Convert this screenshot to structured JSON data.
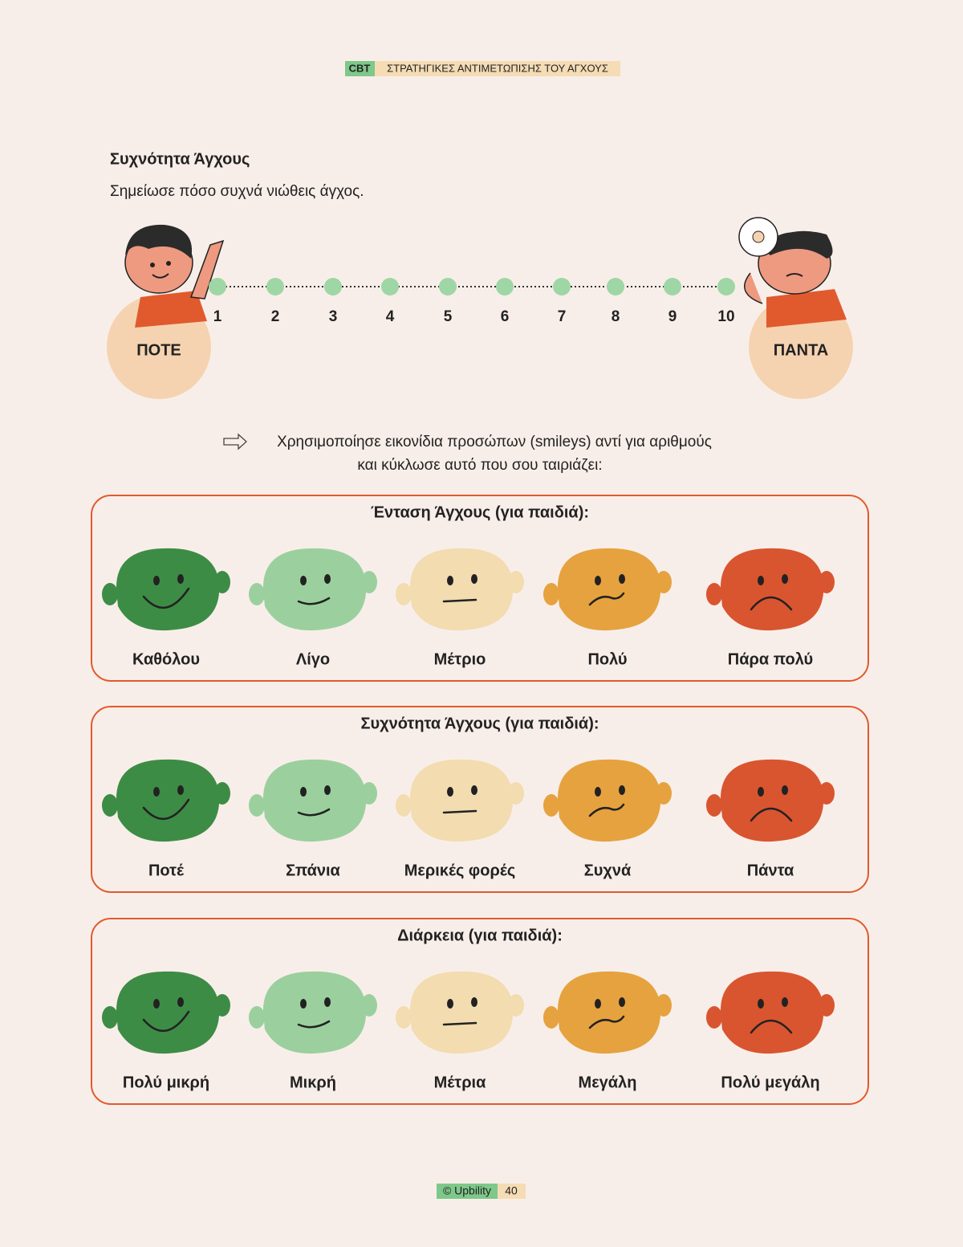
{
  "header": {
    "tag": "CBT",
    "title": "ΣΤΡΑΤΗΓΙΚΕΣ ΑΝΤΙΜΕΤΩΠΙΣΗΣ ΤΟΥ ΑΓΧΟΥΣ"
  },
  "section": {
    "title": "Συχνότητα Άγχους",
    "instruction": "Σημείωσε πόσο συχνά νιώθεις άγχος."
  },
  "scale": {
    "points": [
      1,
      2,
      3,
      4,
      5,
      6,
      7,
      8,
      9,
      10
    ],
    "left_label": "ΠΟΤΕ",
    "right_label": "ΠΑΝΤΑ"
  },
  "note": {
    "lines": [
      "Χρησιμοποίησε εικονίδια προσώπων (smileys) αντί για αριθμούς",
      "και κύκλωσε αυτό που σου ταιριάζει:"
    ]
  },
  "panels": [
    {
      "title": "Ένταση Άγχους (για παιδιά):",
      "labels": [
        "Καθόλου",
        "Λίγο",
        "Μέτριο",
        "Πολύ",
        "Πάρα πολύ"
      ]
    },
    {
      "title": "Συχνότητα Άγχους (για παιδιά):",
      "labels": [
        "Ποτέ",
        "Σπάνια",
        "Μερικές φορές",
        "Συχνά",
        "Πάντα"
      ]
    },
    {
      "title": "Διάρκεια (για παιδιά):",
      "labels": [
        "Πολύ μικρή",
        "Μικρή",
        "Μέτρια",
        "Μεγάλη",
        "Πολύ μεγάλη"
      ]
    }
  ],
  "footer": {
    "copyright": "© Upbility",
    "page": 40
  }
}
